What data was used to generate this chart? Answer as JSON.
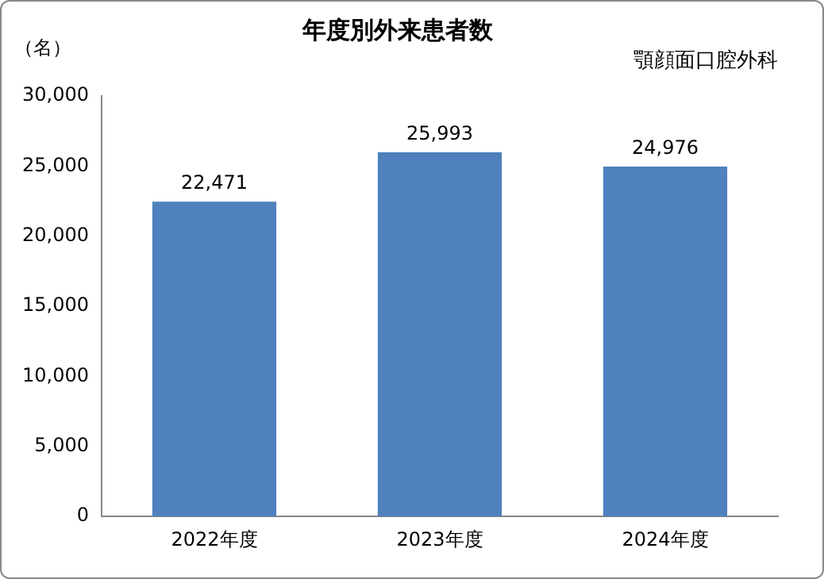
{
  "chart_data": {
    "type": "bar",
    "title": "年度別外来患者数",
    "subtitle": "顎顔面口腔外科",
    "ylabel": "（名）",
    "categories": [
      "2022年度",
      "2023年度",
      "2024年度"
    ],
    "values": [
      22471,
      25993,
      24976
    ],
    "color": "#4f81bd",
    "ylim": [
      0,
      30000
    ],
    "yticks": [
      0,
      {
        "value": 5000,
        "label": "5,000"
      },
      {
        "value": 10000,
        "label": "10,000"
      },
      {
        "value": 15000,
        "label": "15,000"
      },
      {
        "value": 20000,
        "label": "20,000"
      },
      {
        "value": 25000,
        "label": "25,000"
      },
      {
        "value": 30000,
        "label": "30,000"
      }
    ],
    "value_labels": [
      "22,471",
      "25,993",
      "24,976"
    ],
    "grid": false,
    "legend": false
  }
}
